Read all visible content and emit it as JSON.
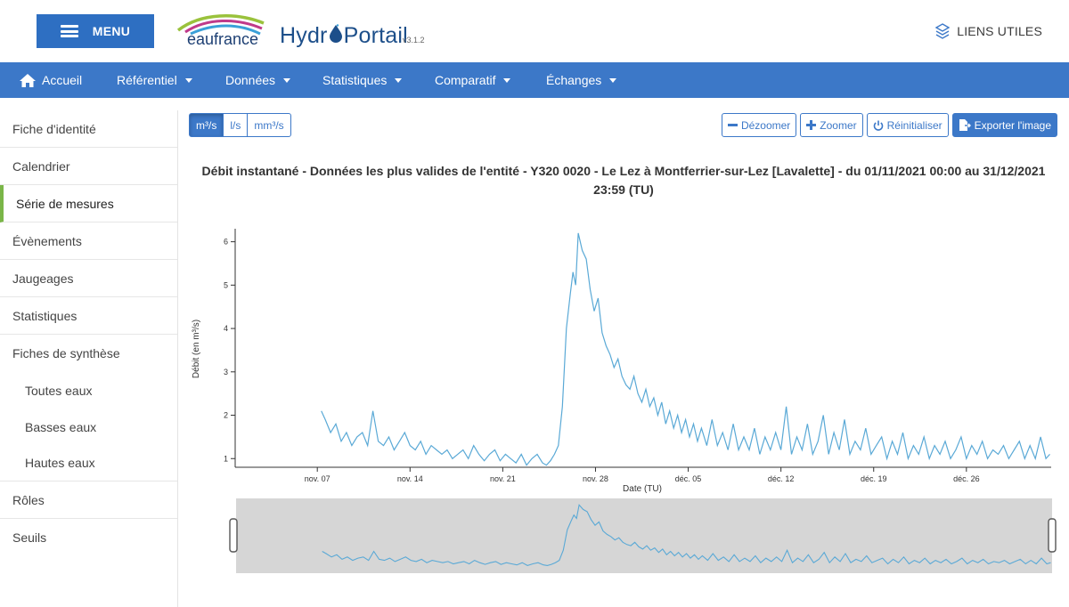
{
  "header": {
    "menu_label": "MENU",
    "logo_eau": "eaufrance",
    "logo_hydro_prefix": "Hydr",
    "logo_hydro_suffix": "Portail",
    "version": "v3.1.2",
    "liens_label": "LIENS UTILES"
  },
  "nav": {
    "items": [
      {
        "label": "Accueil",
        "icon": "home-icon",
        "dropdown": false
      },
      {
        "label": "Référentiel",
        "dropdown": true
      },
      {
        "label": "Données",
        "dropdown": true
      },
      {
        "label": "Statistiques",
        "dropdown": true
      },
      {
        "label": "Comparatif",
        "dropdown": true
      },
      {
        "label": "Échanges",
        "dropdown": true
      }
    ]
  },
  "sidebar": {
    "items": [
      {
        "label": "Fiche d'identité"
      },
      {
        "label": "Calendrier"
      },
      {
        "label": "Série de mesures",
        "active": true
      },
      {
        "label": "Évènements"
      },
      {
        "label": "Jaugeages"
      },
      {
        "label": "Statistiques"
      },
      {
        "label": "Fiches de synthèse"
      },
      {
        "label": "Toutes eaux",
        "sub": true
      },
      {
        "label": "Basses eaux",
        "sub": true
      },
      {
        "label": "Hautes eaux",
        "sub": true
      },
      {
        "label": "Rôles"
      },
      {
        "label": "Seuils"
      }
    ]
  },
  "toolbar": {
    "units": [
      "m³/s",
      "l/s",
      "mm³/s"
    ],
    "active_unit": "m³/s",
    "dezoom_label": "Dézoomer",
    "zoom_label": "Zoomer",
    "reset_label": "Réinitialiser",
    "export_label": "Exporter l'image"
  },
  "chart_data": {
    "type": "line",
    "title": "Débit instantané - Données les plus valides de l'entité - Y320 0020 - Le Lez à Montferrier-sur-Lez [Lavalette] - du 01/11/2021 00:00 au 31/12/2021 23:59 (TU)",
    "xlabel": "Date (TU)",
    "ylabel": "Débit (en m³/s)",
    "x_ticks": [
      "nov. 07",
      "nov. 14",
      "nov. 21",
      "nov. 28",
      "déc. 05",
      "déc. 12",
      "déc. 19",
      "déc. 26"
    ],
    "x_tick_days": [
      7,
      14,
      21,
      28,
      35,
      42,
      49,
      56
    ],
    "xlim_days": [
      0.8,
      62.4
    ],
    "y_ticks": [
      1,
      2,
      3,
      4,
      5,
      6
    ],
    "ylim": [
      0.8,
      6.3
    ],
    "line_color": "#5aa9d6",
    "series": [
      {
        "x": [
          7.3,
          7.6,
          8.0,
          8.4,
          8.8,
          9.2,
          9.6,
          10.0,
          10.4,
          10.8,
          11.2,
          11.6,
          12.0,
          12.4,
          12.8,
          13.2,
          13.6,
          14.0,
          14.4,
          14.8,
          15.2,
          15.6,
          16.0,
          16.4,
          16.8,
          17.2,
          17.6,
          18.0,
          18.4,
          18.8,
          19.2,
          19.6,
          20.0,
          20.4,
          20.8,
          21.2,
          21.6,
          22.0,
          22.4,
          22.8,
          23.2,
          23.6,
          24.0,
          24.3,
          24.6,
          24.9,
          25.2,
          25.5,
          25.8,
          26.1,
          26.3,
          26.5,
          26.7,
          27.0,
          27.3,
          27.6,
          27.9,
          28.2,
          28.5,
          28.8,
          29.1,
          29.4,
          29.7,
          30.0,
          30.3,
          30.6,
          30.9,
          31.2,
          31.5,
          31.8,
          32.1,
          32.4,
          32.7,
          33.0,
          33.3,
          33.6,
          33.9,
          34.2,
          34.5,
          34.8,
          35.1,
          35.4,
          35.7,
          36.0,
          36.4,
          36.8,
          37.2,
          37.6,
          38.0,
          38.4,
          38.8,
          39.2,
          39.6,
          40.0,
          40.4,
          40.8,
          41.2,
          41.6,
          42.0,
          42.4,
          42.8,
          43.2,
          43.6,
          44.0,
          44.4,
          44.8,
          45.2,
          45.6,
          46.0,
          46.4,
          46.8,
          47.2,
          47.6,
          48.0,
          48.4,
          48.8,
          49.2,
          49.6,
          50.0,
          50.4,
          50.8,
          51.2,
          51.6,
          52.0,
          52.4,
          52.8,
          53.2,
          53.6,
          54.0,
          54.4,
          54.8,
          55.2,
          55.6,
          56.0,
          56.4,
          56.8,
          57.2,
          57.6,
          58.0,
          58.4,
          58.8,
          59.2,
          59.6,
          60.0,
          60.4,
          60.8,
          61.2,
          61.6,
          62.0,
          62.3
        ],
        "values": [
          2.1,
          1.9,
          1.6,
          1.8,
          1.4,
          1.6,
          1.3,
          1.5,
          1.6,
          1.3,
          2.1,
          1.4,
          1.3,
          1.5,
          1.2,
          1.4,
          1.6,
          1.3,
          1.2,
          1.4,
          1.1,
          1.3,
          1.2,
          1.1,
          1.2,
          1.0,
          1.1,
          1.2,
          1.0,
          1.3,
          1.1,
          0.95,
          1.1,
          1.2,
          0.95,
          1.1,
          1.0,
          0.9,
          1.1,
          0.85,
          1.0,
          1.1,
          0.9,
          0.85,
          0.95,
          1.1,
          1.3,
          2.2,
          4.0,
          4.8,
          5.3,
          5.0,
          6.2,
          5.8,
          5.6,
          4.9,
          4.4,
          4.7,
          3.9,
          3.6,
          3.4,
          3.1,
          3.3,
          2.9,
          2.7,
          2.6,
          2.9,
          2.5,
          2.3,
          2.6,
          2.2,
          2.4,
          2.0,
          2.3,
          1.8,
          2.1,
          1.7,
          2.0,
          1.6,
          1.9,
          1.5,
          1.8,
          1.4,
          1.7,
          1.3,
          1.9,
          1.3,
          1.6,
          1.2,
          1.8,
          1.2,
          1.5,
          1.2,
          1.7,
          1.1,
          1.5,
          1.2,
          1.6,
          1.2,
          2.2,
          1.1,
          1.5,
          1.2,
          1.8,
          1.1,
          1.4,
          2.0,
          1.1,
          1.6,
          1.2,
          1.9,
          1.1,
          1.4,
          1.2,
          1.7,
          1.1,
          1.3,
          1.5,
          1.0,
          1.4,
          1.1,
          1.6,
          1.0,
          1.3,
          1.1,
          1.5,
          1.0,
          1.3,
          1.1,
          1.4,
          1.0,
          1.2,
          1.5,
          1.0,
          1.3,
          1.1,
          1.4,
          1.0,
          1.2,
          1.1,
          1.3,
          1.0,
          1.2,
          1.4,
          1.0,
          1.3,
          1.0,
          1.5,
          1.0,
          1.1
        ]
      }
    ]
  }
}
